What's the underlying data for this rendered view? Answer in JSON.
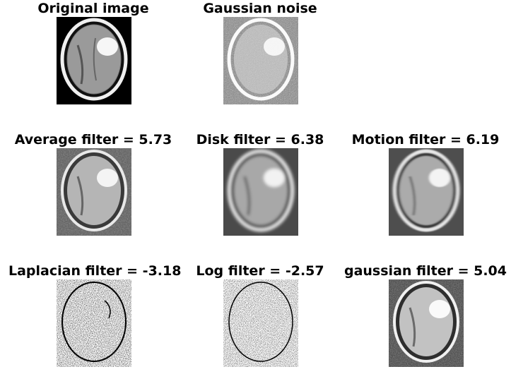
{
  "panels": [
    {
      "title": "Original image",
      "style": "original"
    },
    {
      "title": "Gaussian noise",
      "style": "noisy"
    },
    {
      "title": "Average filter = 5.73",
      "style": "average"
    },
    {
      "title": "Disk filter = 6.38",
      "style": "disk"
    },
    {
      "title": "Motion filter = 6.19",
      "style": "motion"
    },
    {
      "title": "Laplacian filter = -3.18",
      "style": "laplacian"
    },
    {
      "title": "Log filter = -2.57",
      "style": "log"
    },
    {
      "title": "gaussian filter = 5.04",
      "style": "gaussian"
    }
  ]
}
